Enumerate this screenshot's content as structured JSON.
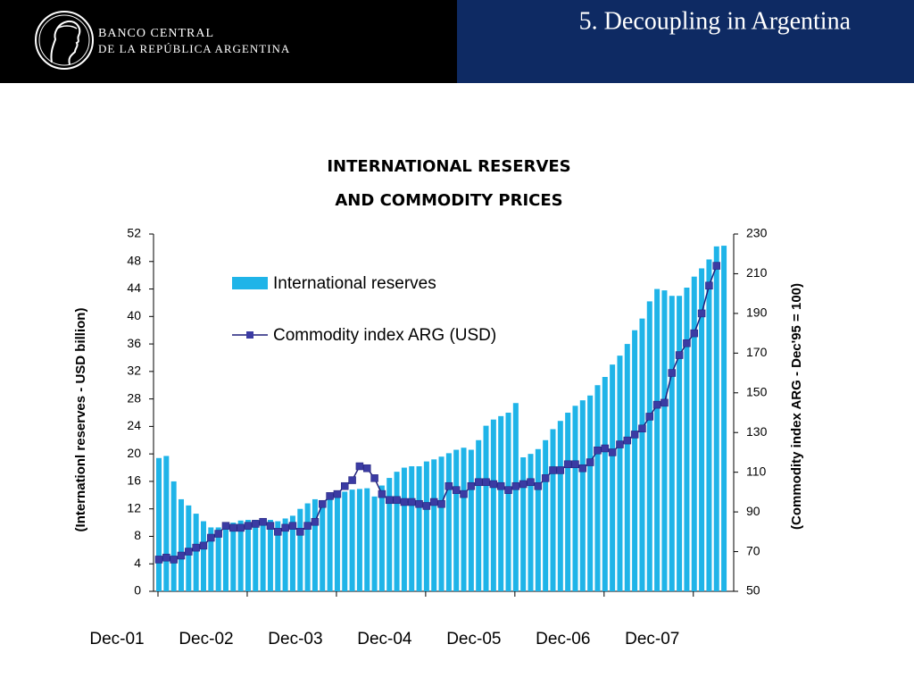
{
  "header": {
    "bank_line1": "BANCO CENTRAL",
    "bank_line2": "DE LA REPÚBLICA ARGENTINA",
    "slide_title": "5. Decoupling in Argentina"
  },
  "chart_data": {
    "type": "bar_line",
    "title": [
      "INTERNATIONAL RESERVES",
      "AND COMMODITY PRICES"
    ],
    "ylabel": "(Internationl reserves - USD billion)",
    "y2label": "(Commodity index ARG - Dec'95 = 100)",
    "categories": [
      "Dec-01",
      null,
      null,
      null,
      null,
      null,
      null,
      null,
      null,
      null,
      null,
      null,
      "Dec-02",
      null,
      null,
      null,
      null,
      null,
      null,
      null,
      null,
      null,
      null,
      null,
      "Dec-03",
      null,
      null,
      null,
      null,
      null,
      null,
      null,
      null,
      null,
      null,
      null,
      "Dec-04",
      null,
      null,
      null,
      null,
      null,
      null,
      null,
      null,
      null,
      null,
      null,
      "Dec-05",
      null,
      null,
      null,
      null,
      null,
      null,
      null,
      null,
      null,
      null,
      null,
      "Dec-06",
      null,
      null,
      null,
      null,
      null,
      null,
      null,
      null,
      null,
      null,
      null,
      "Dec-07",
      null,
      null,
      null,
      null
    ],
    "series": [
      {
        "name": "International reserves",
        "type": "bar",
        "color": "#1fb4e8",
        "axis": "y",
        "values": [
          19.4,
          19.7,
          16,
          13.4,
          12.5,
          11.3,
          10.2,
          9.3,
          9.3,
          9.7,
          10,
          10.3,
          10.4,
          10.4,
          10.5,
          10.4,
          10.2,
          10.6,
          11,
          12,
          12.8,
          13.4,
          13,
          13.8,
          14.1,
          14.5,
          14.8,
          14.9,
          15,
          13.8,
          15.4,
          16.5,
          17.4,
          18,
          18.2,
          18.2,
          18.9,
          19.2,
          19.6,
          20.1,
          20.6,
          20.9,
          20.6,
          22,
          24.1,
          25,
          25.5,
          26,
          27.4,
          19.5,
          20,
          20.7,
          22,
          23.6,
          24.8,
          26,
          27,
          27.8,
          28.5,
          30,
          31.2,
          33,
          34.3,
          36,
          38,
          39.7,
          42.2,
          44,
          43.8,
          43,
          43,
          44.2,
          45.8,
          47,
          48.3,
          50.2,
          50.3
        ]
      },
      {
        "name": "Commodity index ARG (USD)",
        "type": "line",
        "color": "#1f1f7a",
        "marker_color": "#3b3ba3",
        "axis": "y2",
        "values": [
          66,
          67,
          66,
          68,
          70,
          72,
          73,
          77,
          79,
          83,
          82,
          82,
          83,
          84,
          85,
          83,
          80,
          82,
          83,
          80,
          83,
          85,
          94,
          98,
          99,
          103,
          106,
          113,
          112,
          107,
          99,
          96,
          96,
          95,
          95,
          94,
          93,
          95,
          94,
          103,
          101,
          99,
          103,
          105,
          105,
          104,
          103,
          101,
          103,
          104,
          105,
          103,
          107,
          111,
          111,
          114,
          114,
          112,
          115,
          121,
          122,
          120,
          124,
          126,
          129,
          132,
          138,
          144,
          145,
          160,
          169,
          175,
          180,
          190,
          204,
          214,
          null
        ]
      }
    ],
    "ylim": [
      0,
      52
    ],
    "yticks": [
      0,
      4,
      8,
      12,
      16,
      20,
      24,
      28,
      32,
      36,
      40,
      44,
      48,
      52
    ],
    "y2lim": [
      50,
      230
    ],
    "y2ticks": [
      50,
      70,
      90,
      110,
      130,
      150,
      170,
      190,
      210,
      230
    ]
  }
}
